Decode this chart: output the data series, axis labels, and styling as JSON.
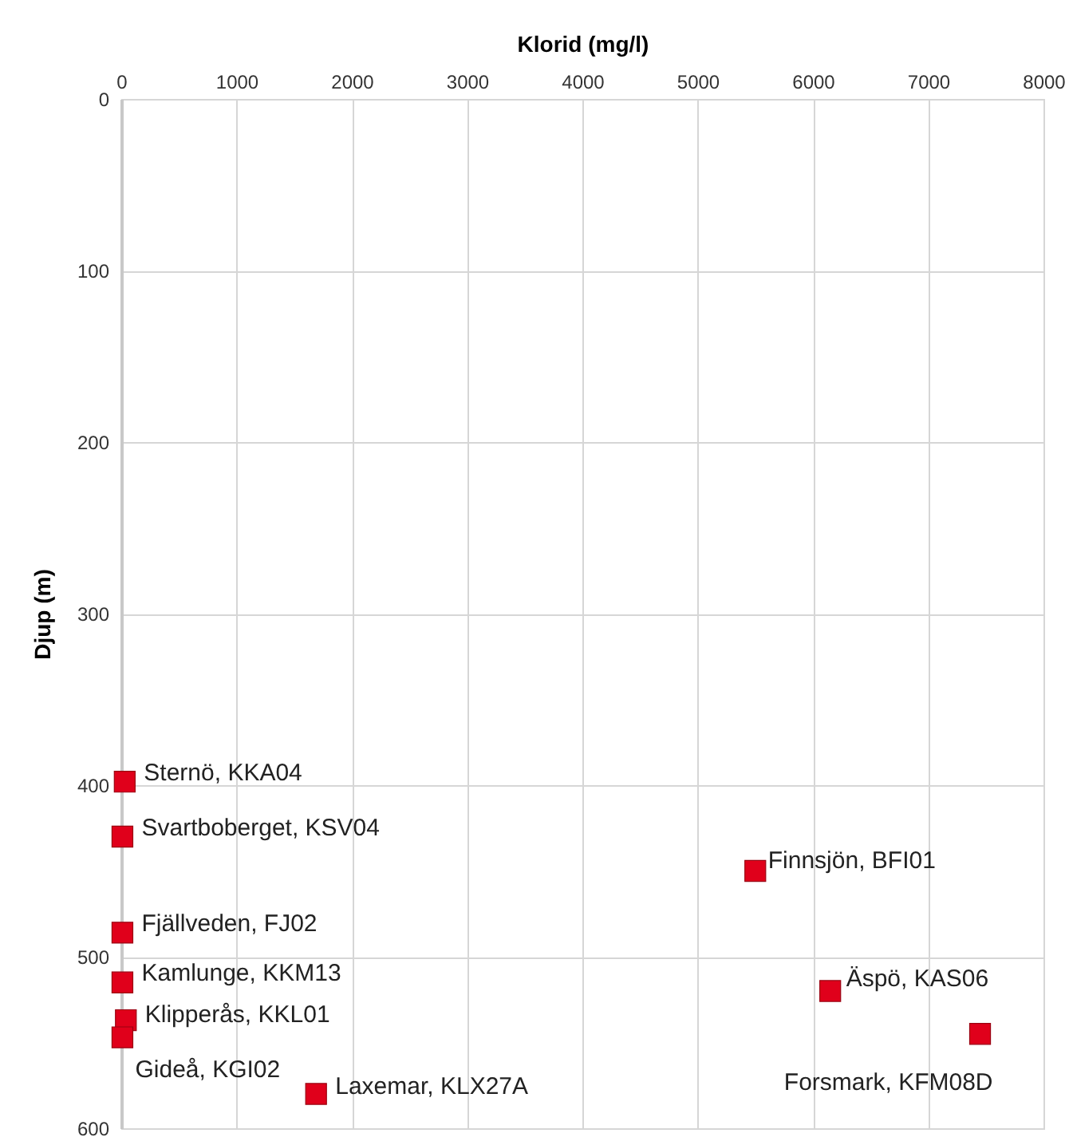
{
  "chart_data": {
    "type": "scatter",
    "xlabel": "Klorid (mg/l)",
    "ylabel": "Djup (m)",
    "x": [
      30,
      10,
      10,
      10,
      40,
      10,
      1690,
      5500,
      6150,
      7450
    ],
    "series": [
      {
        "color": "#e0001b",
        "values": [
          398,
          430,
          486,
          515,
          537,
          547,
          580,
          450,
          520,
          545
        ]
      }
    ],
    "xlim": [
      0,
      8000
    ],
    "xticks": [
      0,
      1000,
      2000,
      3000,
      4000,
      5000,
      6000,
      7000,
      8000
    ],
    "ylim": [
      600,
      0
    ],
    "yticks": [
      0,
      100,
      200,
      300,
      400,
      500,
      600
    ],
    "grid": true,
    "marker": "square",
    "annotations": [
      {
        "text": "Sternö, KKA04",
        "x": 30,
        "y": 398
      },
      {
        "text": "Svartboberget, KSV04",
        "x": 10,
        "y": 430
      },
      {
        "text": "Fjällveden, FJ02",
        "x": 10,
        "y": 486
      },
      {
        "text": "Kamlunge, KKM13",
        "x": 10,
        "y": 515
      },
      {
        "text": "Klipperås, KKL01",
        "x": 40,
        "y": 537
      },
      {
        "text": "Gideå, KGI02",
        "x": 10,
        "y": 547
      },
      {
        "text": "Laxemar, KLX27A",
        "x": 1690,
        "y": 580
      },
      {
        "text": "Finnsjön, BFI01",
        "x": 5500,
        "y": 450
      },
      {
        "text": "Äspö, KAS06",
        "x": 6150,
        "y": 520
      },
      {
        "text": "Forsmark, KFM08D",
        "x": 7450,
        "y": 545
      }
    ]
  }
}
